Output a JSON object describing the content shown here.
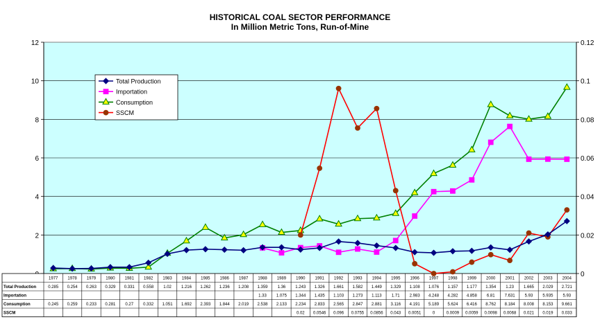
{
  "chart_data": {
    "type": "line",
    "title": "HISTORICAL COAL SECTOR PERFORMANCE",
    "subtitle": "In Million Metric Tons, Run-of-Mine",
    "categories": [
      "1977",
      "1978",
      "1979",
      "1980",
      "1981",
      "1982",
      "1983",
      "1984",
      "1985",
      "1986",
      "1987",
      "1988",
      "1989",
      "1990",
      "1991",
      "1992",
      "1993",
      "1994",
      "1995",
      "1996",
      "1997",
      "1998",
      "1999",
      "2000",
      "2001",
      "2002",
      "2003",
      "2004"
    ],
    "y_left": {
      "min": 0,
      "max": 12,
      "ticks": [
        "0",
        "2",
        "4",
        "6",
        "8",
        "10",
        "12"
      ]
    },
    "y_right": {
      "min": 0,
      "max": 0.12,
      "ticks": [
        "0",
        "0.02",
        "0.04",
        "0.06",
        "0.08",
        "0.1",
        "0.12"
      ]
    },
    "series": [
      {
        "name": "Total Production",
        "axis": "left",
        "color": "#000080",
        "marker": "diamond",
        "values": [
          0.285,
          0.254,
          0.263,
          0.329,
          0.331,
          0.558,
          1.02,
          1.216,
          1.262,
          1.236,
          1.208,
          1.359,
          1.36,
          1.243,
          1.326,
          1.661,
          1.582,
          1.449,
          1.329,
          1.108,
          1.076,
          1.157,
          1.177,
          1.354,
          1.23,
          1.665,
          2.029,
          2.721
        ],
        "labels": [
          "0.285",
          "0.254",
          "0.263",
          "0.329",
          "0.331",
          "0.558",
          "1.02",
          "1.216",
          "1.262",
          "1.236",
          "1.208",
          "1.359",
          "1.36",
          "1.243",
          "1.326",
          "1.661",
          "1.582",
          "1.449",
          "1.329",
          "1.108",
          "1.076",
          "1.157",
          "1.177",
          "1.354",
          "1.23",
          "1.665",
          "2.029",
          "2.721"
        ]
      },
      {
        "name": "Importation",
        "axis": "left",
        "color": "#FF00FF",
        "marker": "square",
        "values": [
          null,
          null,
          null,
          null,
          null,
          null,
          null,
          null,
          null,
          null,
          null,
          1.33,
          1.075,
          1.344,
          1.435,
          1.103,
          1.273,
          1.113,
          1.71,
          2.983,
          4.248,
          4.282,
          4.858,
          6.81,
          7.631,
          5.93,
          5.935,
          5.93
        ],
        "labels": [
          "",
          "",
          "",
          "",
          "",
          "",
          "",
          "",
          "",
          "",
          "",
          "1.33",
          "1.075",
          "1.344",
          "1.435",
          "1.103",
          "1.273",
          "1.113",
          "1.71",
          "2.983",
          "4.248",
          "4.282",
          "4.858",
          "6.81",
          "7.631",
          "5.93",
          "5.935",
          "5.93"
        ]
      },
      {
        "name": "Consumption",
        "axis": "left",
        "color": "#008000",
        "marker": "triangle",
        "marker_fill": "#FFFF00",
        "values": [
          0.245,
          0.259,
          0.233,
          0.281,
          0.27,
          0.332,
          1.051,
          1.692,
          2.393,
          1.844,
          2.019,
          2.538,
          2.133,
          2.234,
          2.833,
          2.565,
          2.847,
          2.881,
          3.116,
          4.191,
          5.189,
          5.624,
          6.416,
          8.762,
          8.184,
          8.008,
          8.153,
          9.661
        ],
        "labels": [
          "0.245",
          "0.259",
          "0.233",
          "0.281",
          "0.27",
          "0.332",
          "1.051",
          "1.692",
          "2.393",
          "1.844",
          "2.019",
          "2.538",
          "2.133",
          "2.234",
          "2.833",
          "2.565",
          "2.847",
          "2.881",
          "3.116",
          "4.191",
          "5.189",
          "5.624",
          "6.416",
          "8.762",
          "8.184",
          "8.008",
          "8.153",
          "9.661"
        ]
      },
      {
        "name": "SSCM",
        "axis": "right",
        "color": "#993300",
        "line_color": "#FF0000",
        "marker": "circle",
        "values": [
          null,
          null,
          null,
          null,
          null,
          null,
          null,
          null,
          null,
          null,
          null,
          null,
          null,
          0.02,
          0.0546,
          0.096,
          0.0755,
          0.0856,
          0.043,
          0.0051,
          0,
          0.0009,
          0.0059,
          0.0098,
          0.0068,
          0.021,
          0.019,
          0.033
        ],
        "labels": [
          "",
          "",
          "",
          "",
          "",
          "",
          "",
          "",
          "",
          "",
          "",
          "",
          "",
          "0.02",
          "0.0546",
          "0.096",
          "0.0755",
          "0.0856",
          "0.043",
          "0.0051",
          "0",
          "0.0009",
          "0.0059",
          "0.0098",
          "0.0068",
          "0.021",
          "0.019",
          "0.033"
        ]
      }
    ],
    "table_row_labels": [
      "Total Production",
      "Importation",
      "Consumption",
      "SSCM"
    ],
    "legend_placement": "top-left inside plot",
    "grid": true,
    "plot_background": "#CCFFFF"
  }
}
